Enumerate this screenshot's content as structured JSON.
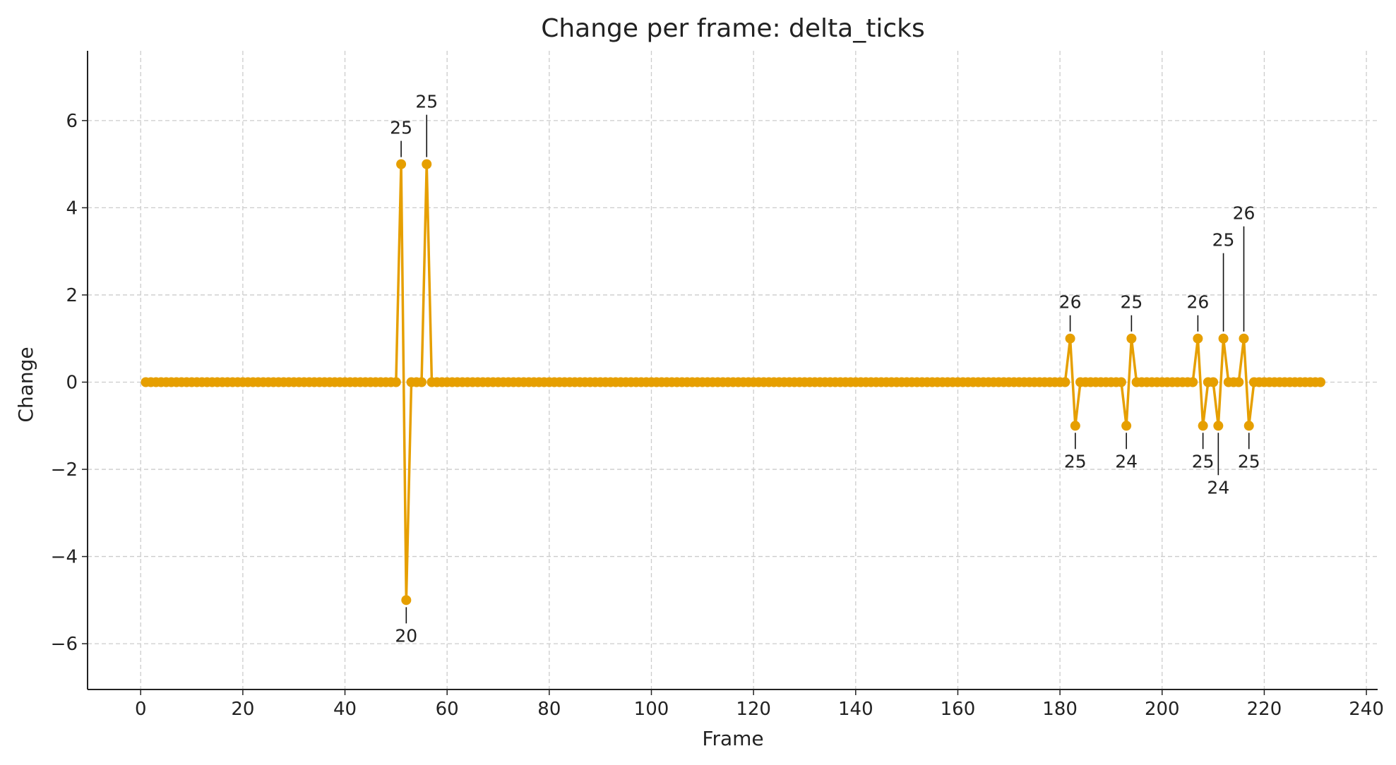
{
  "chart_data": {
    "type": "line",
    "title": "Change per frame: delta_ticks",
    "xlabel": "Frame",
    "ylabel": "Change",
    "xlim": [
      -10.4,
      242.2
    ],
    "ylim": [
      -7.05,
      7.6
    ],
    "xticks": [
      0,
      20,
      40,
      60,
      80,
      100,
      120,
      140,
      160,
      180,
      200,
      220,
      240
    ],
    "yticks": [
      -6,
      -4,
      -2,
      0,
      2,
      4,
      6
    ],
    "ytick_labels": [
      "−6",
      "−4",
      "−2",
      "0",
      "2",
      "4",
      "6"
    ],
    "grid": true,
    "color": "#E69F00",
    "marker": "circle",
    "x_range": [
      1,
      231
    ],
    "nonzero": [
      {
        "x": 51,
        "y": 5,
        "label": "25"
      },
      {
        "x": 52,
        "y": -5,
        "label": "20"
      },
      {
        "x": 56,
        "y": 5,
        "label": "25"
      },
      {
        "x": 182,
        "y": 1,
        "label": "26"
      },
      {
        "x": 183,
        "y": -1,
        "label": "25"
      },
      {
        "x": 193,
        "y": -1,
        "label": "24"
      },
      {
        "x": 194,
        "y": 1,
        "label": "25"
      },
      {
        "x": 207,
        "y": 1,
        "label": "26"
      },
      {
        "x": 208,
        "y": -1,
        "label": "25"
      },
      {
        "x": 211,
        "y": -1,
        "label": "24"
      },
      {
        "x": 212,
        "y": 1,
        "label": "25"
      },
      {
        "x": 216,
        "y": 1,
        "label": "26"
      },
      {
        "x": 217,
        "y": -1,
        "label": "25"
      }
    ]
  }
}
